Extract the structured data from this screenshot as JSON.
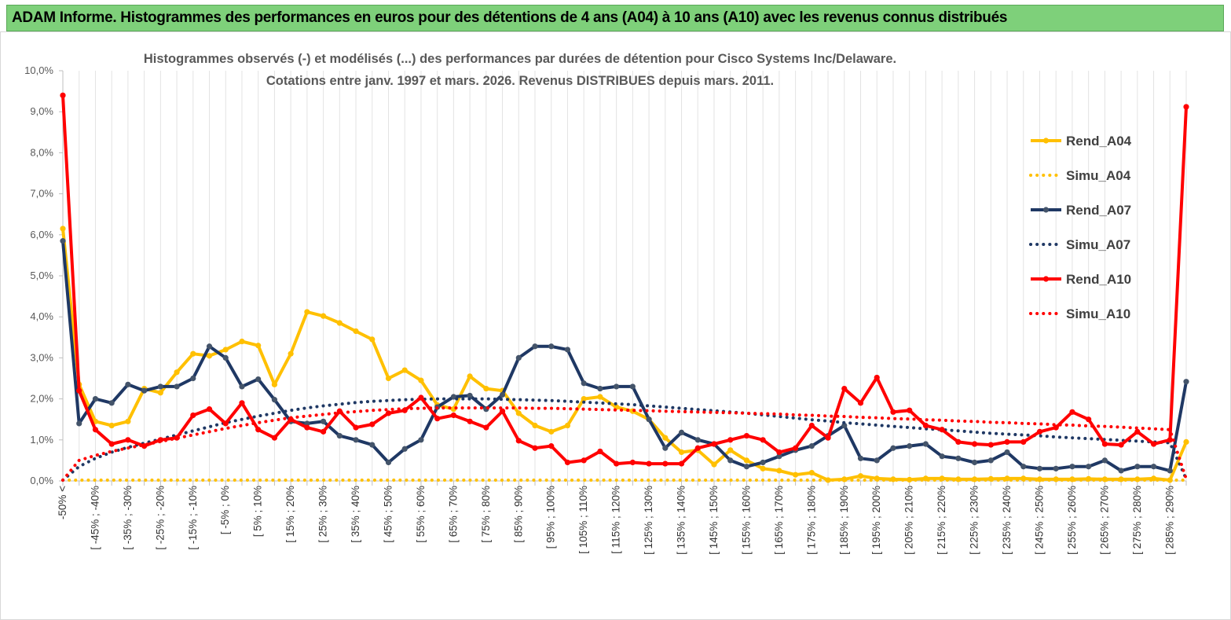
{
  "banner": {
    "title": "ADAM Informe. Histogrammes des performances en euros pour des détentions de 4 ans (A04) à 10 ans (A10) avec les revenus connus distribués"
  },
  "colors": {
    "banner_bg": "#7ed07a",
    "a04": "#ffc000",
    "a07": "#1f3864",
    "a07_marker": "#44546a",
    "a10": "#ff0000"
  },
  "chart_data": {
    "type": "line",
    "title_line1": "Histogrammes observés (-) et modélisés (...) des performances par durées de détention pour Cisco Systems Inc/Delaware.",
    "title_line2": "Cotations entre janv. 1997 et mars. 2026. Revenus DISTRIBUES depuis mars. 2011.",
    "xlabel": "",
    "ylabel": "",
    "ylim": [
      0,
      10
    ],
    "y_ticks": [
      "0,0%",
      "1,0%",
      "2,0%",
      "3,0%",
      "4,0%",
      "5,0%",
      "6,0%",
      "7,0%",
      "8,0%",
      "9,0%",
      "10,0%"
    ],
    "x_labels": [
      "-50% <",
      "[ -45% ; -40%",
      "[ -35% ; -30%",
      "[ -25% ; -20%",
      "[ -15% ; -10%",
      "[ -5% ; 0%",
      "[ 5% ; 10%",
      "[ 15% ; 20%",
      "[ 25% ; 30%",
      "[ 35% ; 40%",
      "[ 45% ; 50%",
      "[ 55% ; 60%",
      "[ 65% ; 70%",
      "[ 75% ; 80%",
      "[ 85% ; 90%",
      "[ 95% ; 100%",
      "[ 105% ; 110%",
      "[ 115% ; 120%",
      "[ 125% ; 130%",
      "[ 135% ; 140%",
      "[ 145% ; 150%",
      "[ 155% ; 160%",
      "[ 165% ; 170%",
      "[ 175% ; 180%",
      "[ 185% ; 190%",
      "[ 195% ; 200%",
      "[ 205% ; 210%",
      "[ 215% ; 220%",
      "[ 225% ; 230%",
      "[ 235% ; 240%",
      "[ 245% ; 250%",
      "[ 255% ; 260%",
      "[ 265% ; 270%",
      "[ 275% ; 280%",
      "[ 285% ; 290%"
    ],
    "n_points": 70,
    "series": [
      {
        "name": "Rend_A04",
        "style": "solid",
        "color": "#ffc000",
        "values": [
          6.15,
          2.35,
          1.45,
          1.35,
          1.45,
          2.25,
          2.15,
          2.65,
          3.1,
          3.05,
          3.2,
          3.4,
          3.3,
          2.35,
          3.1,
          4.12,
          4.02,
          3.85,
          3.65,
          3.45,
          2.5,
          2.7,
          2.45,
          1.85,
          1.75,
          2.55,
          2.25,
          2.2,
          1.65,
          1.35,
          1.2,
          1.35,
          2.0,
          2.05,
          1.8,
          1.7,
          1.5,
          1.05,
          0.7,
          0.75,
          0.4,
          0.75,
          0.5,
          0.3,
          0.25,
          0.15,
          0.2,
          0.02,
          0.04,
          0.12,
          0.06,
          0.04,
          0.03,
          0.06,
          0.06,
          0.04,
          0.04,
          0.05,
          0.06,
          0.06,
          0.04,
          0.04,
          0.04,
          0.05,
          0.04,
          0.04,
          0.04,
          0.06,
          0.02,
          0.95
        ]
      },
      {
        "name": "Simu_A04",
        "style": "dotted",
        "color": "#ffc000",
        "values": [
          0.02,
          0.02,
          0.02,
          0.02,
          0.02,
          0.02,
          0.02,
          0.02,
          0.02,
          0.02,
          0.02,
          0.02,
          0.02,
          0.02,
          0.02,
          0.02,
          0.02,
          0.02,
          0.02,
          0.02,
          0.02,
          0.02,
          0.02,
          0.02,
          0.02,
          0.02,
          0.02,
          0.02,
          0.02,
          0.02,
          0.02,
          0.02,
          0.02,
          0.02,
          0.02,
          0.02,
          0.02,
          0.02,
          0.02,
          0.02,
          0.02,
          0.02,
          0.02,
          0.02,
          0.02,
          0.02,
          0.02,
          0.02,
          0.02,
          0.02,
          0.02,
          0.02,
          0.02,
          0.02,
          0.02,
          0.02,
          0.02,
          0.02,
          0.02,
          0.02,
          0.02,
          0.02,
          0.02,
          0.02,
          0.02,
          0.02,
          0.02,
          0.02,
          0.02,
          0.02
        ]
      },
      {
        "name": "Rend_A07",
        "style": "solid",
        "color": "#1f3864",
        "values": [
          5.85,
          1.4,
          2.0,
          1.9,
          2.35,
          2.2,
          2.3,
          2.3,
          2.5,
          3.28,
          3.0,
          2.3,
          2.48,
          1.98,
          1.45,
          1.4,
          1.45,
          1.1,
          1.0,
          0.88,
          0.45,
          0.78,
          1.0,
          1.8,
          2.05,
          2.08,
          1.75,
          2.1,
          3.0,
          3.28,
          3.28,
          3.2,
          2.38,
          2.25,
          2.3,
          2.3,
          1.5,
          0.8,
          1.18,
          1.0,
          0.9,
          0.5,
          0.35,
          0.45,
          0.6,
          0.75,
          0.85,
          1.1,
          1.35,
          0.55,
          0.5,
          0.8,
          0.85,
          0.9,
          0.6,
          0.55,
          0.45,
          0.5,
          0.7,
          0.35,
          0.3,
          0.3,
          0.35,
          0.35,
          0.5,
          0.25,
          0.35,
          0.35,
          0.25,
          2.42
        ]
      },
      {
        "name": "Simu_A07",
        "style": "dotted",
        "color": "#1f3864",
        "values": [
          0.02,
          0.35,
          0.55,
          0.7,
          0.82,
          0.92,
          1.02,
          1.12,
          1.22,
          1.32,
          1.42,
          1.5,
          1.58,
          1.65,
          1.72,
          1.78,
          1.83,
          1.87,
          1.91,
          1.94,
          1.96,
          1.98,
          1.99,
          2.0,
          2.0,
          2.0,
          2.0,
          1.99,
          1.98,
          1.97,
          1.96,
          1.94,
          1.92,
          1.9,
          1.88,
          1.86,
          1.83,
          1.8,
          1.77,
          1.74,
          1.71,
          1.68,
          1.65,
          1.61,
          1.57,
          1.53,
          1.49,
          1.46,
          1.42,
          1.39,
          1.36,
          1.33,
          1.3,
          1.27,
          1.25,
          1.22,
          1.19,
          1.16,
          1.14,
          1.12,
          1.1,
          1.07,
          1.05,
          1.03,
          1.01,
          0.99,
          0.97,
          0.95,
          0.93,
          0.05
        ]
      },
      {
        "name": "Rend_A10",
        "style": "solid",
        "color": "#ff0000",
        "values": [
          9.4,
          2.2,
          1.25,
          0.9,
          1.0,
          0.85,
          1.0,
          1.05,
          1.6,
          1.75,
          1.4,
          1.9,
          1.25,
          1.05,
          1.5,
          1.3,
          1.2,
          1.7,
          1.3,
          1.38,
          1.65,
          1.72,
          2.03,
          1.52,
          1.6,
          1.45,
          1.3,
          1.7,
          0.98,
          0.8,
          0.85,
          0.45,
          0.5,
          0.72,
          0.42,
          0.45,
          0.42,
          0.42,
          0.42,
          0.8,
          0.9,
          1.0,
          1.1,
          1.0,
          0.7,
          0.8,
          1.35,
          1.05,
          2.25,
          1.9,
          2.52,
          1.68,
          1.72,
          1.35,
          1.25,
          0.95,
          0.9,
          0.88,
          0.95,
          0.95,
          1.2,
          1.3,
          1.68,
          1.5,
          0.9,
          0.88,
          1.2,
          0.9,
          1.0,
          9.12
        ]
      },
      {
        "name": "Simu_A10",
        "style": "dotted",
        "color": "#ff0000",
        "values": [
          0.02,
          0.5,
          0.62,
          0.72,
          0.8,
          0.88,
          0.96,
          1.04,
          1.12,
          1.2,
          1.28,
          1.35,
          1.42,
          1.48,
          1.54,
          1.58,
          1.62,
          1.66,
          1.69,
          1.72,
          1.74,
          1.76,
          1.77,
          1.78,
          1.78,
          1.78,
          1.78,
          1.78,
          1.78,
          1.77,
          1.77,
          1.76,
          1.75,
          1.74,
          1.73,
          1.72,
          1.71,
          1.7,
          1.69,
          1.68,
          1.67,
          1.66,
          1.65,
          1.64,
          1.63,
          1.61,
          1.6,
          1.58,
          1.57,
          1.55,
          1.54,
          1.52,
          1.51,
          1.49,
          1.48,
          1.46,
          1.45,
          1.43,
          1.42,
          1.4,
          1.39,
          1.37,
          1.36,
          1.34,
          1.33,
          1.31,
          1.29,
          1.27,
          1.25,
          0.05
        ]
      }
    ],
    "legend": [
      "Rend_A04",
      "Simu_A04",
      "Rend_A07",
      "Simu_A07",
      "Rend_A10",
      "Simu_A10"
    ],
    "legend_position": "top-right",
    "grid": "vertical"
  }
}
